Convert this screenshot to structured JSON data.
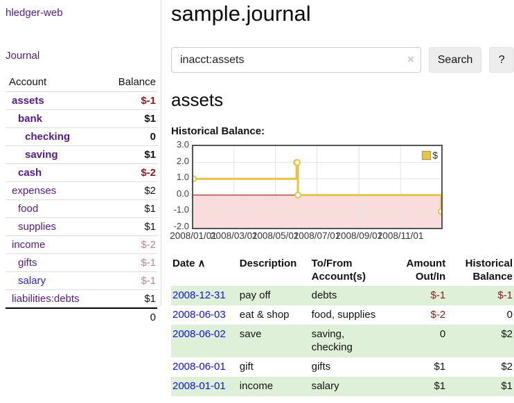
{
  "brand": {
    "label": "hledger-web"
  },
  "sidebar": {
    "journal_link": "Journal",
    "accounts": {
      "col_account": "Account",
      "col_balance": "Balance",
      "rows": [
        {
          "name": "assets",
          "balance": "$-1"
        },
        {
          "name": "bank",
          "balance": "$1"
        },
        {
          "name": "checking",
          "balance": "0"
        },
        {
          "name": "saving",
          "balance": "$1"
        },
        {
          "name": "cash",
          "balance": "$-2"
        },
        {
          "name": "expenses",
          "balance": "$2"
        },
        {
          "name": "food",
          "balance": "$1"
        },
        {
          "name": "supplies",
          "balance": "$1"
        },
        {
          "name": "income",
          "balance": "$-2"
        },
        {
          "name": "gifts",
          "balance": "$-1"
        },
        {
          "name": "salary",
          "balance": "$-1"
        },
        {
          "name": "liabilities:debts",
          "balance": "$1"
        }
      ],
      "total": "0"
    }
  },
  "page": {
    "title": "sample.journal"
  },
  "search": {
    "value": "inacct:assets",
    "clear_icon": "×",
    "button_label": "Search",
    "help_label": "?"
  },
  "account_page": {
    "heading": "assets",
    "chart_title": "Historical Balance:"
  },
  "chart_data": {
    "type": "line",
    "step": true,
    "title": "Historical Balance",
    "x_range": [
      "2008-01-01",
      "2008-12-31"
    ],
    "ylim": [
      -2,
      3
    ],
    "yticks": [
      "3.0",
      "2.0",
      "1.0",
      "0.0",
      "-1.0",
      "-2.0"
    ],
    "ytick_values": [
      3,
      2,
      1,
      0,
      -1,
      -2
    ],
    "xticks": [
      "2008/01/01",
      "2008/03/01",
      "2008/05/01",
      "2008/07/01",
      "2008/09/01",
      "2008/11/01"
    ],
    "xtick_dates": [
      "2008-01-01",
      "2008-03-01",
      "2008-05-01",
      "2008-07-01",
      "2008-09-01",
      "2008-11-01"
    ],
    "series": [
      {
        "name": "$",
        "color": "#e8c34a",
        "points": [
          {
            "x": "2008-01-01",
            "y": 1
          },
          {
            "x": "2008-06-01",
            "y": 2
          },
          {
            "x": "2008-06-02",
            "y": 2
          },
          {
            "x": "2008-06-03",
            "y": 0
          },
          {
            "x": "2008-12-31",
            "y": -1
          }
        ]
      }
    ],
    "legend": {
      "label": "$",
      "position": "top-right"
    },
    "grid_color": "#e4e4e4",
    "zero_line_color": "#8b0000",
    "negative_region_color": "#fbdcdc",
    "border_color": "#545454"
  },
  "register": {
    "headers": {
      "date": "Date",
      "sort_icon": "∧",
      "description": "Description",
      "accounts": "To/From\nAccount(s)",
      "amount": "Amount\nOut/In",
      "balance": "Historical\nBalance"
    },
    "rows": [
      {
        "date": "2008-12-31",
        "description": "pay off",
        "accounts": "debts",
        "amount": "$-1",
        "balance": "$-1"
      },
      {
        "date": "2008-06-03",
        "description": "eat & shop",
        "accounts": "food, supplies",
        "amount": "$-2",
        "balance": "0"
      },
      {
        "date": "2008-06-02",
        "description": "save",
        "accounts": "saving, checking",
        "amount": "0",
        "balance": "$2"
      },
      {
        "date": "2008-06-01",
        "description": "gift",
        "accounts": "gifts",
        "amount": "$1",
        "balance": "$2"
      },
      {
        "date": "2008-01-01",
        "description": "income",
        "accounts": "salary",
        "amount": "$1",
        "balance": "$1"
      }
    ]
  },
  "colors": {
    "link_purple": "#551a8b",
    "link_blue": "#0f0fe8",
    "negative_strong": "#8b1a1a",
    "negative_soft": "#c48585",
    "row_stripe_green": "#dff0d8",
    "chart_line_gold": "#e8c34a",
    "chart_negative_fill": "#fbdcdc",
    "chart_zero_line": "#8b0000"
  }
}
